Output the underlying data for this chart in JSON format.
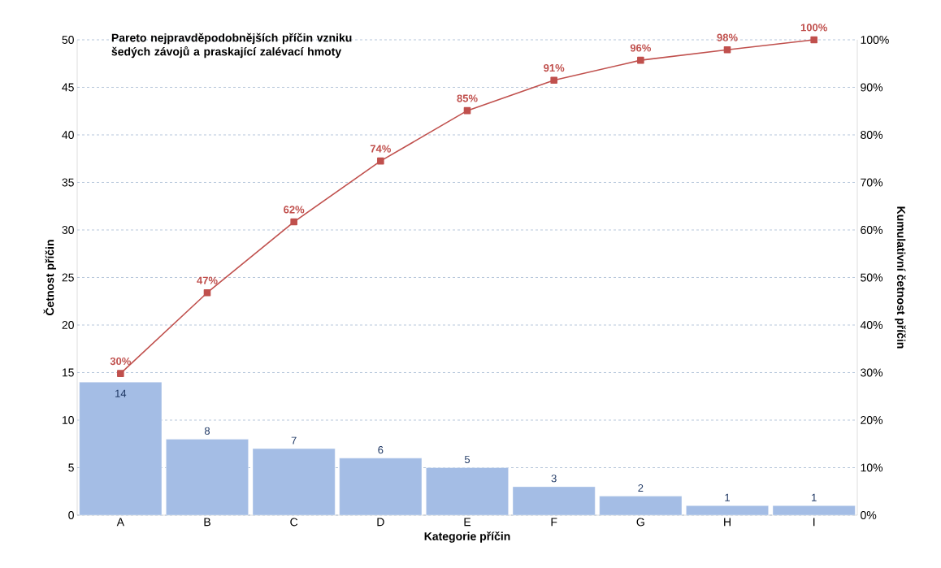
{
  "chart_data": {
    "type": "bar",
    "title": "Pareto nejpravděpodobnějších příčin vzniku šedých závojů a praskající zalévací hmoty",
    "xlabel": "Kategorie příčin",
    "ylabel": "Četnost příčin",
    "y2label": "Kumulativní četnost příčin",
    "categories": [
      "A",
      "B",
      "C",
      "D",
      "E",
      "F",
      "G",
      "H",
      "I"
    ],
    "series": [
      {
        "color": "#a4bde5",
        "values": [
          14,
          8,
          7,
          6,
          5,
          3,
          2,
          1,
          1
        ],
        "value_labels": [
          "14",
          "8",
          "7",
          "6",
          "5",
          "3",
          "2",
          "1",
          "1"
        ]
      },
      {
        "type": "line",
        "axis": "y2",
        "color": "#c0504d",
        "values": [
          29.8,
          46.8,
          61.7,
          74.5,
          85.1,
          91.5,
          95.7,
          97.9,
          100
        ],
        "value_labels": [
          "30%",
          "47%",
          "62%",
          "74%",
          "85%",
          "91%",
          "96%",
          "98%",
          "100%"
        ]
      }
    ],
    "ylim": [
      0,
      50
    ],
    "yticks": [
      0,
      5,
      10,
      15,
      20,
      25,
      30,
      35,
      40,
      45,
      50
    ],
    "y2lim": [
      0,
      100
    ],
    "y2ticks": [
      {
        "value": 0,
        "label": "0%"
      },
      {
        "value": 10,
        "label": "10%"
      },
      {
        "value": 20,
        "label": "20%"
      },
      {
        "value": 30,
        "label": "30%"
      },
      {
        "value": 40,
        "label": "40%"
      },
      {
        "value": 50,
        "label": "50%"
      },
      {
        "value": 60,
        "label": "60%"
      },
      {
        "value": 70,
        "label": "70%"
      },
      {
        "value": 80,
        "label": "80%"
      },
      {
        "value": 90,
        "label": "90%"
      },
      {
        "value": 100,
        "label": "100%"
      }
    ],
    "grid": "y",
    "marker": "square",
    "line_style": "solid"
  }
}
